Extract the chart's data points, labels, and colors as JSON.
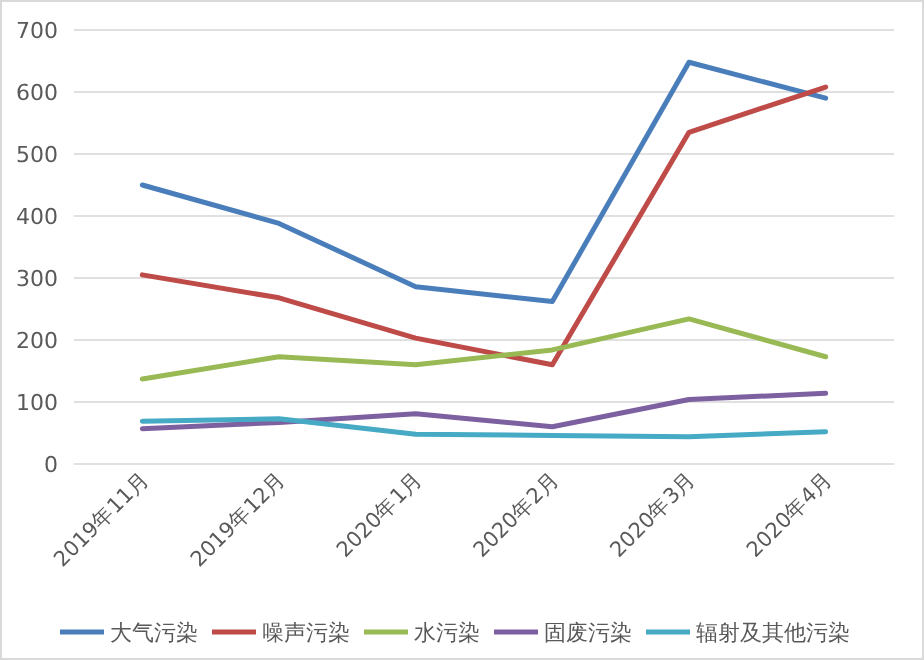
{
  "chart_data": {
    "type": "line",
    "categories": [
      "2019年11月",
      "2019年12月",
      "2020年1月",
      "2020年2月",
      "2020年3月",
      "2020年4月"
    ],
    "series": [
      {
        "name": "大气污染",
        "color": "#4a7ebb",
        "values": [
          450,
          388,
          286,
          262,
          648,
          590
        ]
      },
      {
        "name": "噪声污染",
        "color": "#be4b48",
        "values": [
          305,
          268,
          203,
          160,
          535,
          608
        ]
      },
      {
        "name": "水污染",
        "color": "#98b954",
        "values": [
          137,
          173,
          160,
          184,
          234,
          173
        ]
      },
      {
        "name": "固废污染",
        "color": "#7d60a0",
        "values": [
          57,
          67,
          81,
          60,
          104,
          114
        ]
      },
      {
        "name": "辐射及其他污染",
        "color": "#46aac5",
        "values": [
          69,
          73,
          48,
          46,
          44,
          52
        ]
      }
    ],
    "ylim": [
      0,
      700
    ],
    "yticks": [
      0,
      100,
      200,
      300,
      400,
      500,
      600,
      700
    ],
    "grid": "y",
    "legend": "bottom",
    "marker": "none",
    "line_style": "solid"
  }
}
